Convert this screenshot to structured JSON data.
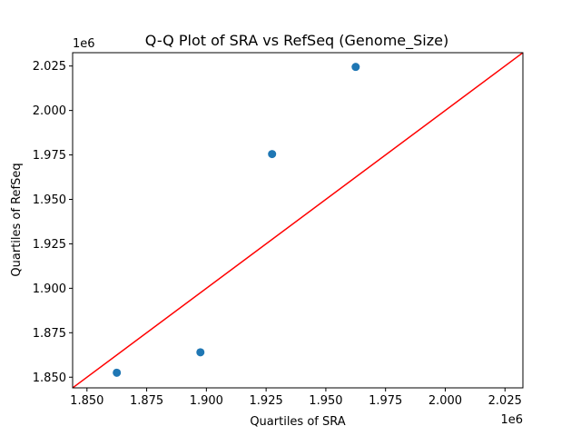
{
  "chart_data": {
    "type": "scatter",
    "title": "Q-Q Plot of SRA vs RefSeq (Genome_Size)",
    "xlabel": "Quartiles of SRA",
    "ylabel": "Quartiles of RefSeq",
    "x_offset_label": "1e6",
    "y_offset_label": "1e6",
    "xlim": [
      1844000,
      2032500
    ],
    "ylim": [
      1844000,
      2032500
    ],
    "x_ticks": [
      1850000,
      1875000,
      1900000,
      1925000,
      1950000,
      1975000,
      2000000,
      2025000
    ],
    "x_tick_labels": [
      "1.850",
      "1.875",
      "1.900",
      "1.925",
      "1.950",
      "1.975",
      "2.000",
      "2.025"
    ],
    "y_ticks": [
      1850000,
      1875000,
      1900000,
      1925000,
      1950000,
      1975000,
      2000000,
      2025000
    ],
    "y_tick_labels": [
      "1.850",
      "1.875",
      "1.900",
      "1.925",
      "1.950",
      "1.975",
      "2.000",
      "2.025"
    ],
    "points": {
      "x": [
        1862500,
        1897500,
        1927500,
        1962500
      ],
      "y": [
        1852500,
        1864000,
        1975500,
        2024500
      ]
    },
    "reference_line": {
      "from": [
        1844000,
        1844000
      ],
      "to": [
        2032500,
        2032500
      ]
    },
    "grid": false,
    "legend": "none",
    "colors": {
      "points": "#1f77b4",
      "reference_line": "#ff0000"
    }
  }
}
